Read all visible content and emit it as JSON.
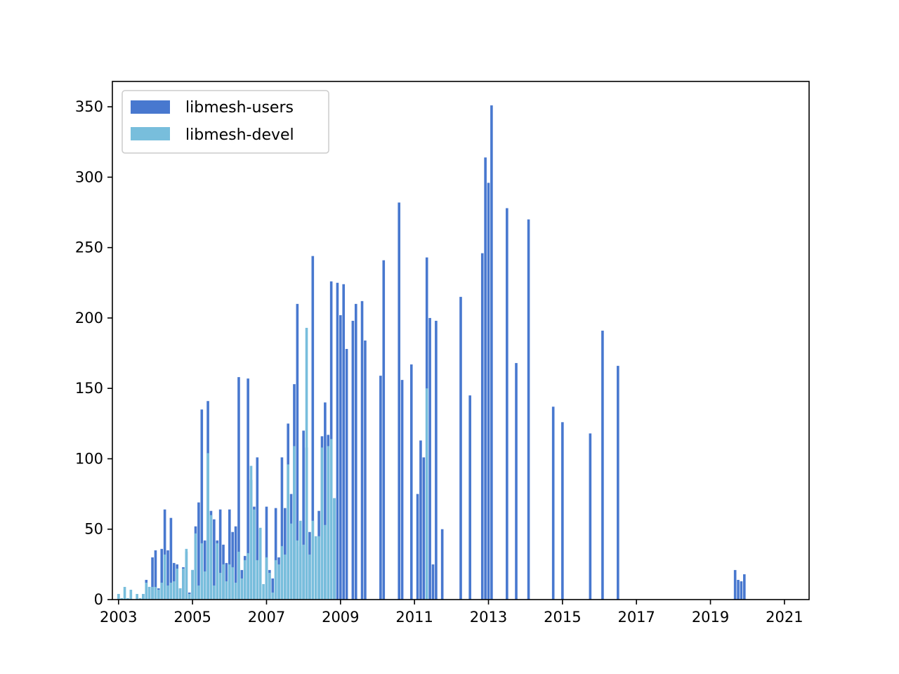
{
  "chart_data": {
    "type": "bar",
    "title": "",
    "xlabel": "",
    "ylabel": "",
    "xlim": [
      "2002-11-01",
      "2021-09-01"
    ],
    "ylim": [
      0,
      368
    ],
    "x_ticks": [
      "2003",
      "2005",
      "2007",
      "2009",
      "2011",
      "2013",
      "2015",
      "2017",
      "2019",
      "2021"
    ],
    "y_ticks": [
      0,
      50,
      100,
      150,
      200,
      250,
      300,
      350
    ],
    "grid": false,
    "legend": "top-left",
    "series_start": "2003-01",
    "series_end": "2021-06",
    "series": [
      {
        "name": "libmesh-users",
        "color": "#4878cf",
        "values": [
          4,
          0,
          0,
          0,
          0,
          0,
          0,
          0,
          4,
          14,
          9,
          30,
          35,
          8,
          36,
          64,
          35,
          58,
          26,
          25,
          8,
          23,
          34,
          5,
          21,
          52,
          69,
          135,
          42,
          141,
          63,
          57,
          42,
          64,
          39,
          26,
          64,
          48,
          52,
          158,
          21,
          31,
          157,
          85,
          66,
          101,
          50,
          0,
          66,
          21,
          15,
          65,
          30,
          101,
          65,
          125,
          75,
          153,
          210,
          38,
          120,
          108,
          48,
          244,
          0,
          63,
          116,
          140,
          117,
          226,
          72,
          225,
          202,
          224,
          178,
          0,
          198,
          210,
          0,
          212,
          184,
          0,
          0,
          0,
          0,
          159,
          241,
          0,
          0,
          0,
          0,
          282,
          156,
          0,
          0,
          167,
          0,
          75,
          113,
          101,
          243,
          200,
          25,
          198,
          0,
          50,
          0,
          0,
          0,
          0,
          0,
          215,
          0,
          0,
          145,
          0,
          0,
          0,
          246,
          314,
          296,
          351,
          0,
          0,
          0,
          0,
          278,
          0,
          0,
          168,
          0,
          0,
          0,
          270,
          0,
          0,
          0,
          0,
          0,
          0,
          0,
          137,
          0,
          0,
          126,
          0,
          0,
          0,
          0,
          0,
          0,
          0,
          0,
          118,
          0,
          0,
          0,
          191,
          0,
          0,
          0,
          0,
          166,
          0,
          0,
          0,
          0,
          0,
          0,
          0,
          0,
          0,
          0,
          0,
          0,
          0,
          0,
          0,
          0,
          0,
          0,
          0,
          0,
          0,
          0,
          0,
          0,
          0,
          0,
          0,
          0,
          0,
          0,
          0,
          0,
          0,
          0,
          0,
          0,
          0,
          21,
          14,
          13,
          18
        ]
      },
      {
        "name": "libmesh-devel",
        "color": "#78bedc",
        "values": [
          4,
          1,
          9,
          1,
          7,
          0,
          4,
          1,
          4,
          12,
          9,
          9,
          9,
          7,
          12,
          32,
          10,
          12,
          13,
          22,
          8,
          22,
          36,
          4,
          21,
          47,
          10,
          40,
          20,
          104,
          60,
          10,
          40,
          19,
          25,
          13,
          25,
          23,
          12,
          34,
          15,
          28,
          33,
          95,
          64,
          28,
          51,
          11,
          30,
          19,
          5,
          28,
          25,
          38,
          32,
          96,
          54,
          109,
          42,
          56,
          39,
          193,
          32,
          56,
          45,
          45,
          108,
          53,
          109,
          114,
          72,
          0,
          0,
          0,
          0,
          0,
          0,
          0,
          0,
          0,
          0,
          0,
          0,
          0,
          0,
          0,
          0,
          0,
          0,
          0,
          0,
          0,
          0,
          0,
          0,
          0,
          0,
          0,
          0,
          0,
          150,
          0,
          0,
          0,
          0,
          0,
          0,
          0,
          0,
          0,
          0,
          0,
          0,
          0,
          0,
          0,
          0,
          0,
          0,
          0,
          0,
          0,
          0,
          0,
          0,
          0,
          0,
          0,
          0,
          0,
          0,
          0,
          0,
          0,
          0,
          0,
          0,
          0,
          0,
          0,
          0,
          0,
          0,
          0,
          0,
          0,
          0,
          0,
          0,
          0,
          0,
          0,
          0,
          0,
          0,
          0,
          0,
          0,
          0,
          0,
          0,
          0,
          0,
          0,
          0,
          0,
          0,
          0,
          0,
          0,
          0,
          0,
          0,
          0,
          0,
          0,
          0,
          0,
          0,
          0,
          0,
          0,
          0,
          0,
          0,
          0,
          0,
          0,
          0,
          0,
          0,
          0,
          0,
          0,
          0,
          0,
          0,
          0,
          0,
          0,
          0,
          0,
          0,
          0,
          0,
          0,
          0,
          0,
          0,
          0,
          0,
          0,
          0,
          0
        ]
      }
    ]
  }
}
